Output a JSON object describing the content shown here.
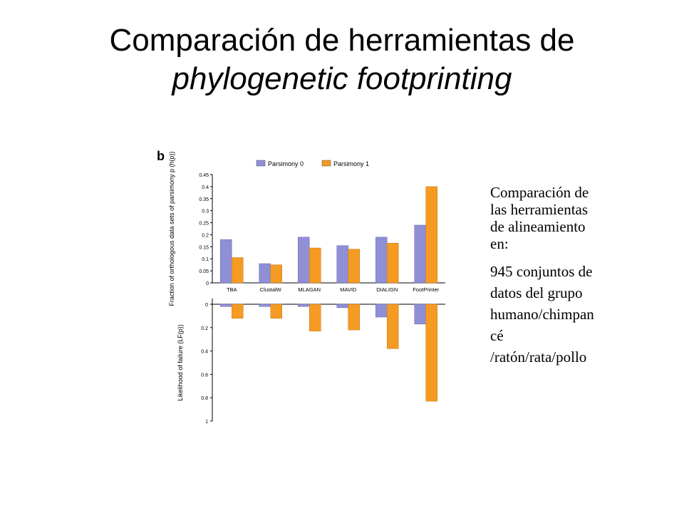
{
  "title": {
    "line1": "Comparación de herramientas de",
    "line2": "phylogenetic footprinting"
  },
  "side_text": {
    "para1": [
      "Comparación de",
      "las herramientas",
      "de alineamiento",
      "en:"
    ],
    "para2": [
      "945 conjuntos de",
      "datos del grupo",
      "humano/chimpan",
      "cé",
      "/ratón/rata/pollo"
    ]
  },
  "colors": {
    "parsimony0": "#8f8fd6",
    "parsimony1": "#f59a23"
  },
  "chart_data": [
    {
      "type": "bar",
      "panel_label": "b",
      "categories": [
        "TBA",
        "ClustalW",
        "MLAGAN",
        "MAVID",
        "DIALIGN",
        "FootPrinter"
      ],
      "ylabel": "Fraction of orthologous data sets of parsimony p (h(p))",
      "ylim": [
        0,
        0.45
      ],
      "yticks": [
        "0",
        "0.05",
        "0.1",
        "0.15",
        "0.2",
        "0.25",
        "0.3",
        "0.35",
        "0.4",
        "0.45"
      ],
      "legend_position": "top",
      "series": [
        {
          "name": "Parsimony 0",
          "values": [
            0.18,
            0.08,
            0.19,
            0.155,
            0.19,
            0.24
          ]
        },
        {
          "name": "Parsimony 1",
          "values": [
            0.105,
            0.075,
            0.145,
            0.14,
            0.165,
            0.4
          ]
        }
      ]
    },
    {
      "type": "bar",
      "ylabel": "Likelihood of failure (LF(p))",
      "ylim": [
        0,
        1
      ],
      "inverted": true,
      "yticks": [
        "0",
        "0.2",
        "0.4",
        "0.6",
        "0.8",
        "1"
      ],
      "categories": [
        "TBA",
        "ClustalW",
        "MLAGAN",
        "MAVID",
        "DIALIGN",
        "FootPrinter"
      ],
      "series": [
        {
          "name": "Parsimony 0",
          "values": [
            0.02,
            0.02,
            0.02,
            0.03,
            0.11,
            0.17
          ]
        },
        {
          "name": "Parsimony 1",
          "values": [
            0.12,
            0.12,
            0.23,
            0.22,
            0.38,
            0.83
          ]
        }
      ]
    }
  ]
}
